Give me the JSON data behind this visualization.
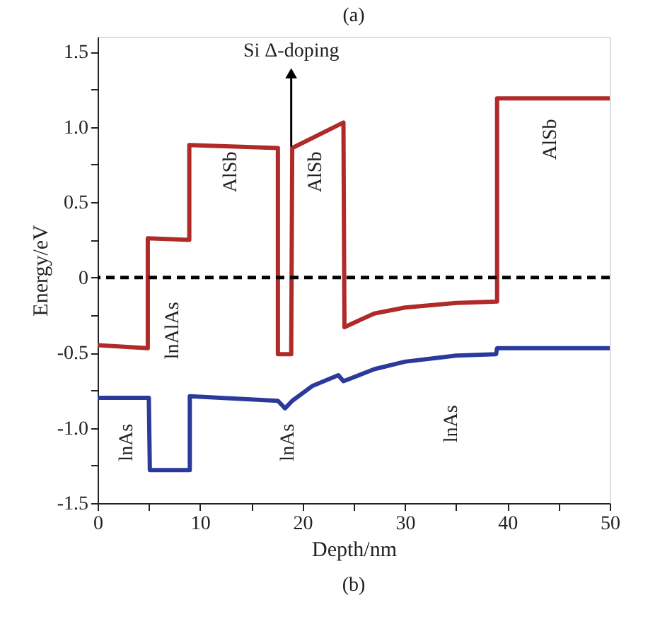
{
  "chart_data": {
    "type": "line",
    "title": "(a)",
    "xlabel": "Depth/nm",
    "ylabel": "Energy/eV",
    "xlim": [
      0,
      50
    ],
    "ylim": [
      -1.5,
      1.6
    ],
    "xticks": [
      0,
      {
        "value": 5,
        "label": null
      },
      10,
      {
        "value": 15,
        "label": null
      },
      20,
      {
        "value": 25,
        "label": null
      },
      30,
      {
        "value": 35,
        "label": null
      },
      40,
      {
        "value": 45,
        "label": null
      },
      50
    ],
    "yticks": [
      {
        "value": -1.5,
        "label": "-1.5"
      },
      {
        "value": -1.25,
        "label": null
      },
      {
        "value": -1.0,
        "label": "-1.0"
      },
      {
        "value": -0.75,
        "label": null
      },
      {
        "value": -0.5,
        "label": "-0.5"
      },
      {
        "value": -0.25,
        "label": null
      },
      {
        "value": 0,
        "label": "0"
      },
      {
        "value": 0.25,
        "label": null
      },
      {
        "value": 0.5,
        "label": "0.5"
      },
      {
        "value": 0.75,
        "label": null
      },
      {
        "value": 1.0,
        "label": "1.0"
      },
      {
        "value": 1.25,
        "label": null
      },
      {
        "value": 1.5,
        "label": "1.5"
      }
    ],
    "grid": false,
    "marker": "none",
    "line_style": "solid",
    "series": [
      {
        "color": "#b02a2a",
        "x": [
          0,
          4.9,
          4.9,
          8.95,
          8.95,
          17.6,
          17.6,
          18.9,
          19.0,
          24.0,
          24.1,
          27,
          30,
          35,
          39,
          39,
          50
        ],
        "values": [
          -0.45,
          -0.47,
          0.26,
          0.25,
          0.88,
          0.86,
          -0.51,
          -0.51,
          0.86,
          1.03,
          -0.33,
          -0.24,
          -0.2,
          -0.17,
          -0.16,
          1.19,
          1.19
        ]
      },
      {
        "color": "#2b3a9a",
        "x": [
          0,
          5.0,
          5.1,
          9.0,
          9.0,
          17.6,
          18.3,
          19.0,
          21,
          23.5,
          24,
          27,
          30,
          35,
          38.9,
          39,
          50
        ],
        "values": [
          -0.8,
          -0.8,
          -1.28,
          -1.28,
          -0.79,
          -0.82,
          -0.87,
          -0.82,
          -0.72,
          -0.65,
          -0.69,
          -0.61,
          -0.56,
          -0.52,
          -0.51,
          -0.47,
          -0.47
        ]
      }
    ],
    "ref_lines": [
      {
        "axis": "y",
        "value": 0,
        "color": "#000000",
        "line_style": "dashed"
      }
    ],
    "annotations": [
      "Si Δ-doping",
      "lnAs",
      "lnAlAs",
      "AlSb",
      "AlSb",
      "lnAs",
      "lnAs",
      "AlSb",
      "(b)"
    ]
  }
}
